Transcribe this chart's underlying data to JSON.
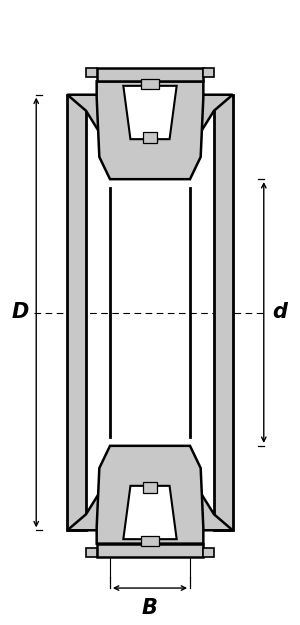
{
  "bg_color": "#ffffff",
  "gray_color": "#c8c8c8",
  "black": "#000000",
  "fig_width": 3.0,
  "fig_height": 6.25,
  "dim_labels": [
    "D",
    "d",
    "B"
  ],
  "dim_fontsize": 15,
  "dim_fontstyle": "italic",
  "dim_fontweight": "bold"
}
